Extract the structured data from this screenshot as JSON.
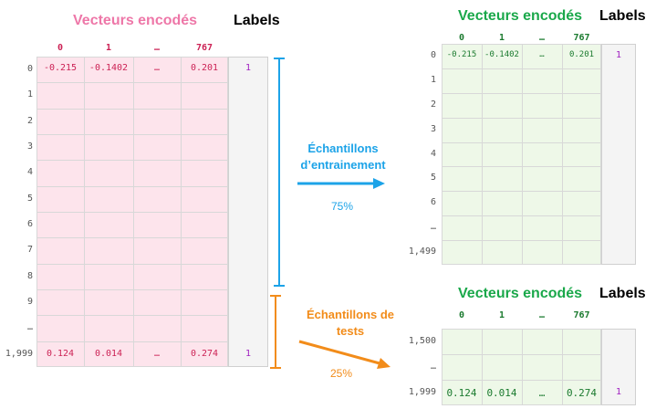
{
  "colors": {
    "pink_title": "#ee77a8",
    "pink_fill": "#fde4ec",
    "pink_col_hdr": "#cc2255",
    "green_title": "#1aa84a",
    "green_fill": "#eef8e8",
    "green_col_hdr": "#1a7a2e",
    "blue": "#1ca3e8",
    "orange": "#f28c1a",
    "label_purple": "#a020c0",
    "label_fill": "#f4f4f4"
  },
  "source": {
    "title": "Vecteurs encodés",
    "labels_title": "Labels",
    "col_headers": [
      "0",
      "1",
      "…",
      "767"
    ],
    "row_headers": [
      "0",
      "1",
      "2",
      "3",
      "4",
      "5",
      "6",
      "7",
      "8",
      "9",
      "…",
      "1,999"
    ],
    "first_row": [
      "-0.215",
      "-0.1402",
      "…",
      "0.201"
    ],
    "first_label": "1",
    "last_row": [
      "0.124",
      "0.014",
      "…",
      "0.274"
    ],
    "last_label": "1"
  },
  "train": {
    "title": "Vecteurs encodés",
    "labels_title": "Labels",
    "col_headers": [
      "0",
      "1",
      "…",
      "767"
    ],
    "row_headers": [
      "0",
      "1",
      "2",
      "3",
      "4",
      "5",
      "6",
      "…",
      "1,499"
    ],
    "first_row": [
      "-0.215",
      "-0.1402",
      "…",
      "0.201"
    ],
    "first_label": "1",
    "arrow_label": "Échantillons d’entrainement",
    "percent": "75%"
  },
  "test": {
    "title": "Vecteurs encodés",
    "labels_title": "Labels",
    "col_headers": [
      "0",
      "1",
      "…",
      "767"
    ],
    "row_headers": [
      "1,500",
      "…",
      "1,999"
    ],
    "last_row": [
      "0.124",
      "0.014",
      "…",
      "0.274"
    ],
    "last_label": "1",
    "arrow_label": "Échantillons de tests",
    "percent": "25%"
  }
}
